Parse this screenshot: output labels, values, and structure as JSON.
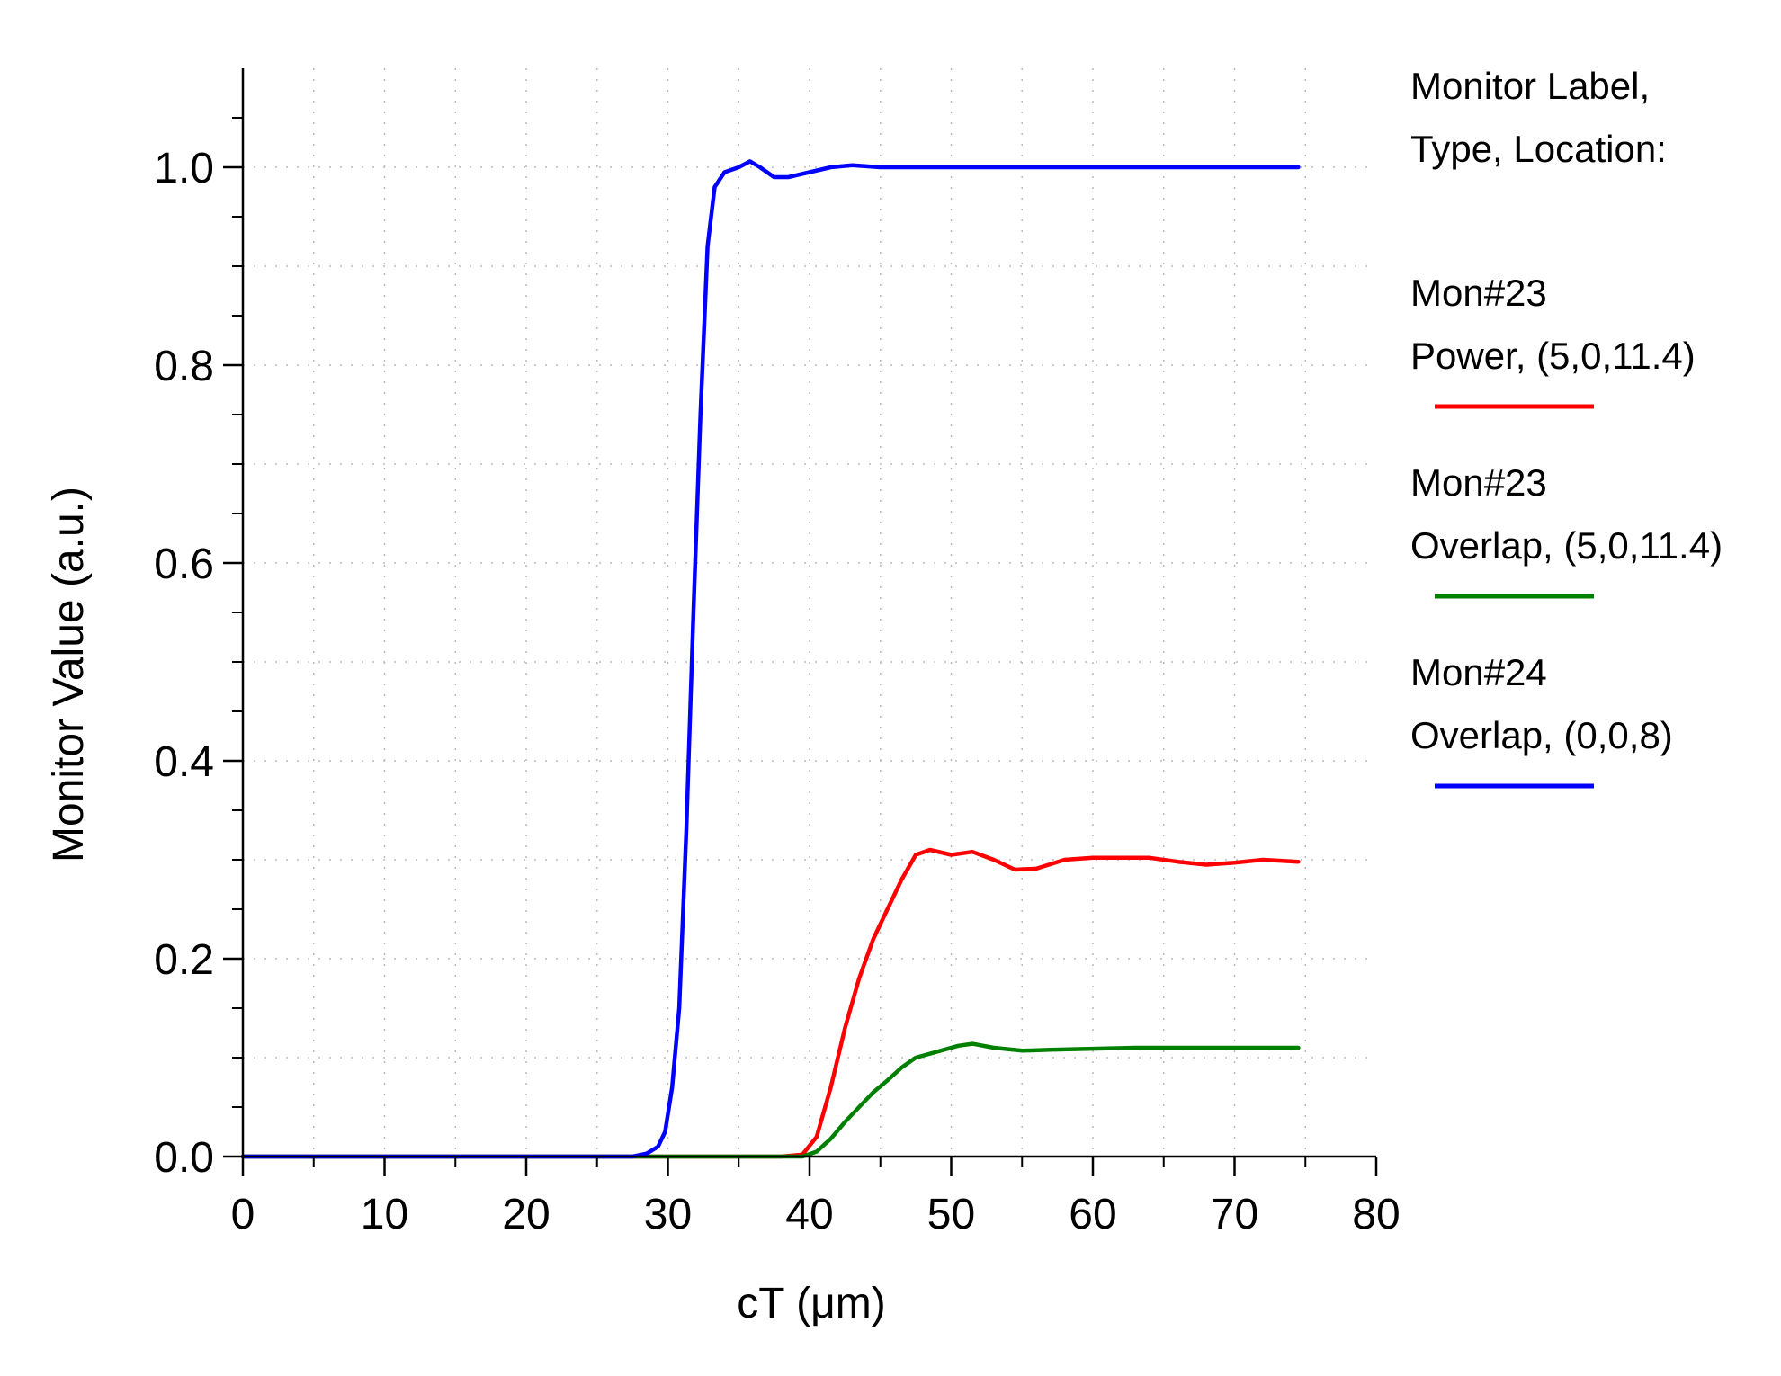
{
  "chart_data": {
    "type": "line",
    "title": "",
    "xlabel": "cT (μm)",
    "ylabel": "Monitor Value (a.u.)",
    "xlim": [
      0,
      80
    ],
    "ylim": [
      0,
      1.1
    ],
    "x_ticks": [
      0,
      10,
      20,
      30,
      40,
      50,
      60,
      70,
      80
    ],
    "x_tick_labels": [
      "0",
      "10",
      "20",
      "30",
      "40",
      "50",
      "60",
      "70",
      "80"
    ],
    "y_ticks": [
      0,
      0.2,
      0.4,
      0.6,
      0.8,
      1.0
    ],
    "y_tick_labels": [
      "0.0",
      "0.2",
      "0.4",
      "0.6",
      "0.8",
      "1.0"
    ],
    "grid": true,
    "legend_position": "right",
    "legend_header": [
      "Monitor Label,",
      "Type, Location:"
    ],
    "series": [
      {
        "name": "Mon#23",
        "detail": "Power, (5,0,11.4)",
        "color": "#ff0000",
        "points": [
          [
            0,
            0
          ],
          [
            38,
            0
          ],
          [
            39.5,
            0.002
          ],
          [
            40.5,
            0.02
          ],
          [
            41.5,
            0.07
          ],
          [
            42.5,
            0.13
          ],
          [
            43.5,
            0.18
          ],
          [
            44.5,
            0.22
          ],
          [
            45.5,
            0.25
          ],
          [
            46.5,
            0.28
          ],
          [
            47.5,
            0.305
          ],
          [
            48.5,
            0.31
          ],
          [
            50,
            0.305
          ],
          [
            51.5,
            0.308
          ],
          [
            53,
            0.3
          ],
          [
            54.5,
            0.29
          ],
          [
            56,
            0.291
          ],
          [
            58,
            0.3
          ],
          [
            60,
            0.302
          ],
          [
            62,
            0.302
          ],
          [
            64,
            0.302
          ],
          [
            66,
            0.298
          ],
          [
            68,
            0.295
          ],
          [
            70,
            0.297
          ],
          [
            72,
            0.3
          ],
          [
            74.5,
            0.298
          ]
        ]
      },
      {
        "name": "Mon#23",
        "detail": "Overlap, (5,0,11.4)",
        "color": "#008000",
        "points": [
          [
            0,
            0
          ],
          [
            39.5,
            0
          ],
          [
            40.5,
            0.005
          ],
          [
            41.5,
            0.018
          ],
          [
            42.5,
            0.035
          ],
          [
            43.5,
            0.05
          ],
          [
            44.5,
            0.065
          ],
          [
            45.5,
            0.077
          ],
          [
            46.5,
            0.09
          ],
          [
            47.5,
            0.1
          ],
          [
            49,
            0.106
          ],
          [
            50.5,
            0.112
          ],
          [
            51.5,
            0.114
          ],
          [
            53,
            0.11
          ],
          [
            55,
            0.107
          ],
          [
            57,
            0.108
          ],
          [
            60,
            0.109
          ],
          [
            63,
            0.11
          ],
          [
            66,
            0.11
          ],
          [
            70,
            0.11
          ],
          [
            74.5,
            0.11
          ]
        ]
      },
      {
        "name": "Mon#24",
        "detail": "Overlap, (0,0,8)",
        "color": "#0000ff",
        "points": [
          [
            0,
            0
          ],
          [
            27.5,
            0
          ],
          [
            28.5,
            0.003
          ],
          [
            29.3,
            0.01
          ],
          [
            29.8,
            0.025
          ],
          [
            30.3,
            0.07
          ],
          [
            30.8,
            0.15
          ],
          [
            31.3,
            0.33
          ],
          [
            31.8,
            0.55
          ],
          [
            32.3,
            0.75
          ],
          [
            32.8,
            0.92
          ],
          [
            33.3,
            0.98
          ],
          [
            34,
            0.995
          ],
          [
            35,
            1.0
          ],
          [
            35.8,
            1.006
          ],
          [
            36.5,
            1.0
          ],
          [
            37.5,
            0.99
          ],
          [
            38.5,
            0.99
          ],
          [
            40,
            0.995
          ],
          [
            41.5,
            1.0
          ],
          [
            43,
            1.002
          ],
          [
            45,
            1.0
          ],
          [
            50,
            1.0
          ],
          [
            55,
            1.0
          ],
          [
            60,
            1.0
          ],
          [
            65,
            1.0
          ],
          [
            70,
            1.0
          ],
          [
            74.5,
            1.0
          ]
        ]
      }
    ]
  }
}
